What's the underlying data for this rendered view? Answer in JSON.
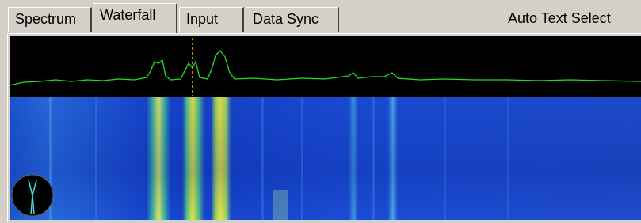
{
  "tabs": [
    "Spectrum",
    "Waterfall",
    "Input",
    "Data Sync"
  ],
  "selected_tab": "Waterfall",
  "right_label": "Auto Text Select"
}
